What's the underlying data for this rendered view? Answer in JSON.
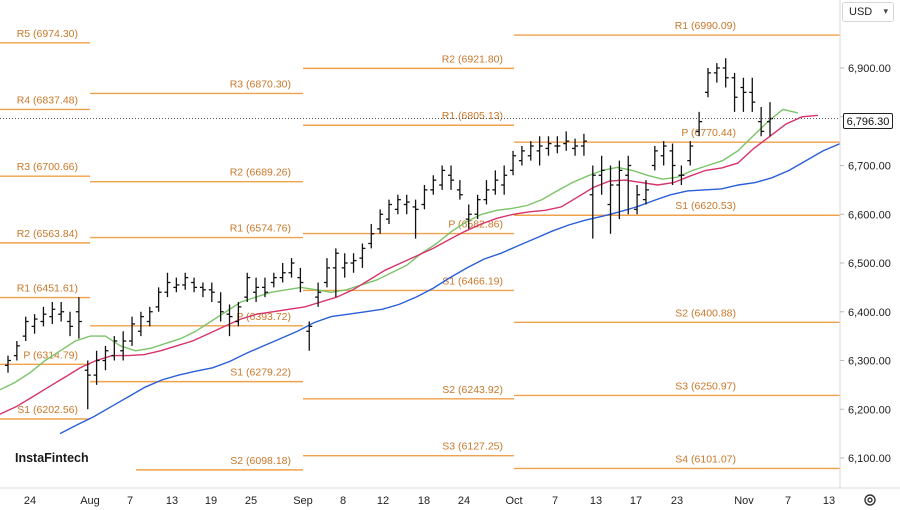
{
  "currency": {
    "label": "USD",
    "chevron_icon": "chevron-down-icon"
  },
  "last_price": "6,796.30",
  "watermark": {
    "text": "InstaFintech"
  },
  "settings_icon": "gear-icon",
  "colors": {
    "pivot": "#f0a14b",
    "ma_green": "#7cc46a",
    "ma_red": "#d6336c",
    "ma_blue": "#2a5fd8",
    "candle": "#111111"
  },
  "chart_data": {
    "type": "ohlc",
    "y_axis": {
      "ticks": [
        "6,100.00",
        "6,200.00",
        "6,300.00",
        "6,400.00",
        "6,500.00",
        "6,600.00",
        "6,700.00",
        "6,800.00",
        "6,900.00"
      ],
      "tick_values": [
        6100,
        6200,
        6300,
        6400,
        6500,
        6600,
        6700,
        6800,
        6900
      ],
      "range": [
        6070,
        7150
      ]
    },
    "x_axis": {
      "ticks": [
        "24",
        "Aug",
        "7",
        "13",
        "19",
        "25",
        "Sep",
        "8",
        "12",
        "18",
        "24",
        "Oct",
        "7",
        "13",
        "17",
        "23",
        "Nov",
        "7",
        "13"
      ]
    },
    "pivot_levels": [
      {
        "label": "R1 (6990.09)",
        "value": 6990.09
      },
      {
        "label": "R2 (6921.80)",
        "value": 6921.8
      },
      {
        "label": "R1 (6805.13)",
        "value": 6805.13
      },
      {
        "label": "P (6770.44)",
        "value": 6770.44
      },
      {
        "label": "S1 (6620.53)",
        "value": 6620.53
      },
      {
        "label": "S2 (6400.88)",
        "value": 6400.88
      },
      {
        "label": "S3 (6250.97)",
        "value": 6250.97
      },
      {
        "label": "S4 (6101.07)",
        "value": 6101.07
      },
      {
        "label": "R3 (6870.30)",
        "value": 6870.3
      },
      {
        "label": "R2 (6689.26)",
        "value": 6689.26
      },
      {
        "label": "R1 (6574.76)",
        "value": 6574.76
      },
      {
        "label": "P (6582.86)",
        "value": 6582.86
      },
      {
        "label": "S1 (6466.19)",
        "value": 6466.19
      },
      {
        "label": "P (6393.72)",
        "value": 6393.72
      },
      {
        "label": "S1 (6279.22)",
        "value": 6279.22
      },
      {
        "label": "S2 (6243.92)",
        "value": 6243.92
      },
      {
        "label": "S3 (6127.25)",
        "value": 6127.25
      },
      {
        "label": "S2 (6098.18)",
        "value": 6098.18
      },
      {
        "label": "R5 (6974.30)",
        "value": 6974.3
      },
      {
        "label": "R4 (6837.48)",
        "value": 6837.48
      },
      {
        "label": "R3 (6700.66)",
        "value": 6700.66
      },
      {
        "label": "R2 (6563.84)",
        "value": 6563.84
      },
      {
        "label": "R1 (6451.61)",
        "value": 6451.61
      },
      {
        "label": "P (6314.79)",
        "value": 6314.79
      },
      {
        "label": "S1 (6202.56)",
        "value": 6202.56
      }
    ],
    "bars": [
      {
        "o": 6290,
        "h": 6310,
        "l": 6275,
        "c": 6300
      },
      {
        "o": 6310,
        "h": 6340,
        "l": 6300,
        "c": 6330
      },
      {
        "o": 6350,
        "h": 6390,
        "l": 6340,
        "c": 6380
      },
      {
        "o": 6370,
        "h": 6395,
        "l": 6355,
        "c": 6385
      },
      {
        "o": 6380,
        "h": 6410,
        "l": 6370,
        "c": 6395
      },
      {
        "o": 6390,
        "h": 6420,
        "l": 6375,
        "c": 6405
      },
      {
        "o": 6395,
        "h": 6420,
        "l": 6380,
        "c": 6400
      },
      {
        "o": 6380,
        "h": 6400,
        "l": 6350,
        "c": 6370
      },
      {
        "o": 6400,
        "h": 6430,
        "l": 6345,
        "c": 6380
      },
      {
        "o": 6280,
        "h": 6300,
        "l": 6200,
        "c": 6270
      },
      {
        "o": 6270,
        "h": 6320,
        "l": 6250,
        "c": 6300
      },
      {
        "o": 6300,
        "h": 6330,
        "l": 6280,
        "c": 6320
      },
      {
        "o": 6310,
        "h": 6350,
        "l": 6300,
        "c": 6340
      },
      {
        "o": 6320,
        "h": 6360,
        "l": 6300,
        "c": 6340
      },
      {
        "o": 6340,
        "h": 6390,
        "l": 6330,
        "c": 6375
      },
      {
        "o": 6360,
        "h": 6400,
        "l": 6350,
        "c": 6390
      },
      {
        "o": 6380,
        "h": 6410,
        "l": 6370,
        "c": 6400
      },
      {
        "o": 6410,
        "h": 6450,
        "l": 6400,
        "c": 6440
      },
      {
        "o": 6440,
        "h": 6480,
        "l": 6430,
        "c": 6460
      },
      {
        "o": 6450,
        "h": 6470,
        "l": 6440,
        "c": 6455
      },
      {
        "o": 6455,
        "h": 6480,
        "l": 6445,
        "c": 6470
      },
      {
        "o": 6460,
        "h": 6470,
        "l": 6440,
        "c": 6450
      },
      {
        "o": 6450,
        "h": 6460,
        "l": 6430,
        "c": 6445
      },
      {
        "o": 6445,
        "h": 6460,
        "l": 6420,
        "c": 6440
      },
      {
        "o": 6420,
        "h": 6440,
        "l": 6380,
        "c": 6400
      },
      {
        "o": 6395,
        "h": 6415,
        "l": 6350,
        "c": 6390
      },
      {
        "o": 6380,
        "h": 6420,
        "l": 6370,
        "c": 6410
      },
      {
        "o": 6430,
        "h": 6480,
        "l": 6420,
        "c": 6470
      },
      {
        "o": 6440,
        "h": 6470,
        "l": 6420,
        "c": 6450
      },
      {
        "o": 6450,
        "h": 6470,
        "l": 6430,
        "c": 6440
      },
      {
        "o": 6460,
        "h": 6480,
        "l": 6450,
        "c": 6470
      },
      {
        "o": 6470,
        "h": 6500,
        "l": 6460,
        "c": 6480
      },
      {
        "o": 6480,
        "h": 6510,
        "l": 6470,
        "c": 6500
      },
      {
        "o": 6470,
        "h": 6490,
        "l": 6440,
        "c": 6460
      },
      {
        "o": 6360,
        "h": 6380,
        "l": 6320,
        "c": 6370
      },
      {
        "o": 6430,
        "h": 6460,
        "l": 6410,
        "c": 6440
      },
      {
        "o": 6460,
        "h": 6510,
        "l": 6450,
        "c": 6490
      },
      {
        "o": 6490,
        "h": 6530,
        "l": 6430,
        "c": 6520
      },
      {
        "o": 6490,
        "h": 6520,
        "l": 6470,
        "c": 6500
      },
      {
        "o": 6500,
        "h": 6520,
        "l": 6480,
        "c": 6505
      },
      {
        "o": 6510,
        "h": 6540,
        "l": 6490,
        "c": 6530
      },
      {
        "o": 6540,
        "h": 6580,
        "l": 6530,
        "c": 6560
      },
      {
        "o": 6570,
        "h": 6610,
        "l": 6560,
        "c": 6600
      },
      {
        "o": 6590,
        "h": 6630,
        "l": 6580,
        "c": 6620
      },
      {
        "o": 6610,
        "h": 6640,
        "l": 6600,
        "c": 6630
      },
      {
        "o": 6620,
        "h": 6640,
        "l": 6600,
        "c": 6625
      },
      {
        "o": 6615,
        "h": 6630,
        "l": 6550,
        "c": 6610
      },
      {
        "o": 6620,
        "h": 6660,
        "l": 6610,
        "c": 6650
      },
      {
        "o": 6650,
        "h": 6680,
        "l": 6640,
        "c": 6670
      },
      {
        "o": 6660,
        "h": 6700,
        "l": 6650,
        "c": 6690
      },
      {
        "o": 6680,
        "h": 6700,
        "l": 6650,
        "c": 6670
      },
      {
        "o": 6650,
        "h": 6670,
        "l": 6630,
        "c": 6640
      },
      {
        "o": 6590,
        "h": 6620,
        "l": 6570,
        "c": 6600
      },
      {
        "o": 6600,
        "h": 6640,
        "l": 6590,
        "c": 6630
      },
      {
        "o": 6630,
        "h": 6670,
        "l": 6620,
        "c": 6650
      },
      {
        "o": 6650,
        "h": 6690,
        "l": 6640,
        "c": 6670
      },
      {
        "o": 6660,
        "h": 6700,
        "l": 6640,
        "c": 6680
      },
      {
        "o": 6690,
        "h": 6730,
        "l": 6680,
        "c": 6720
      },
      {
        "o": 6710,
        "h": 6740,
        "l": 6700,
        "c": 6730
      },
      {
        "o": 6720,
        "h": 6750,
        "l": 6710,
        "c": 6740
      },
      {
        "o": 6730,
        "h": 6760,
        "l": 6700,
        "c": 6740
      },
      {
        "o": 6735,
        "h": 6760,
        "l": 6720,
        "c": 6745
      },
      {
        "o": 6740,
        "h": 6760,
        "l": 6725,
        "c": 6740
      },
      {
        "o": 6745,
        "h": 6770,
        "l": 6730,
        "c": 6750
      },
      {
        "o": 6735,
        "h": 6755,
        "l": 6720,
        "c": 6740
      },
      {
        "o": 6740,
        "h": 6765,
        "l": 6720,
        "c": 6750
      },
      {
        "o": 6640,
        "h": 6700,
        "l": 6550,
        "c": 6680
      },
      {
        "o": 6680,
        "h": 6720,
        "l": 6640,
        "c": 6690
      },
      {
        "o": 6620,
        "h": 6700,
        "l": 6560,
        "c": 6660
      },
      {
        "o": 6660,
        "h": 6710,
        "l": 6590,
        "c": 6690
      },
      {
        "o": 6680,
        "h": 6720,
        "l": 6600,
        "c": 6700
      },
      {
        "o": 6610,
        "h": 6660,
        "l": 6600,
        "c": 6640
      },
      {
        "o": 6630,
        "h": 6670,
        "l": 6620,
        "c": 6650
      },
      {
        "o": 6700,
        "h": 6740,
        "l": 6690,
        "c": 6730
      },
      {
        "o": 6720,
        "h": 6750,
        "l": 6700,
        "c": 6740
      },
      {
        "o": 6730,
        "h": 6745,
        "l": 6660,
        "c": 6700
      },
      {
        "o": 6680,
        "h": 6700,
        "l": 6660,
        "c": 6680
      },
      {
        "o": 6710,
        "h": 6750,
        "l": 6700,
        "c": 6740
      },
      {
        "o": 6770,
        "h": 6810,
        "l": 6760,
        "c": 6790
      },
      {
        "o": 6850,
        "h": 6900,
        "l": 6840,
        "c": 6890
      },
      {
        "o": 6890,
        "h": 6910,
        "l": 6870,
        "c": 6900
      },
      {
        "o": 6900,
        "h": 6920,
        "l": 6860,
        "c": 6880
      },
      {
        "o": 6880,
        "h": 6890,
        "l": 6810,
        "c": 6840
      },
      {
        "o": 6860,
        "h": 6880,
        "l": 6810,
        "c": 6850
      },
      {
        "o": 6850,
        "h": 6880,
        "l": 6810,
        "c": 6830
      },
      {
        "o": 6790,
        "h": 6820,
        "l": 6760,
        "c": 6770
      },
      {
        "o": 6790,
        "h": 6830,
        "l": 6760,
        "c": 6796.3
      }
    ],
    "ma_green": [
      6240,
      6255,
      6275,
      6300,
      6320,
      6340,
      6350,
      6350,
      6330,
      6320,
      6325,
      6335,
      6345,
      6360,
      6380,
      6400,
      6420,
      6430,
      6440,
      6445,
      6450,
      6445,
      6440,
      6445,
      6455,
      6465,
      6480,
      6495,
      6520,
      6540,
      6565,
      6585,
      6600,
      6608,
      6612,
      6618,
      6630,
      6648,
      6665,
      6678,
      6690,
      6696,
      6690,
      6680,
      6672,
      6676,
      6690,
      6700,
      6710,
      6730,
      6760,
      6790,
      6815,
      6808
    ],
    "ma_red": [
      6190,
      6205,
      6225,
      6245,
      6265,
      6285,
      6300,
      6310,
      6310,
      6312,
      6320,
      6330,
      6340,
      6355,
      6370,
      6385,
      6395,
      6400,
      6405,
      6410,
      6420,
      6430,
      6445,
      6465,
      6485,
      6500,
      6515,
      6530,
      6548,
      6565,
      6580,
      6592,
      6600,
      6605,
      6608,
      6615,
      6635,
      6655,
      6668,
      6670,
      6665,
      6660,
      6665,
      6678,
      6690,
      6695,
      6705,
      6735,
      6760,
      6785,
      6800,
      6803
    ],
    "ma_blue": [
      6150,
      6168,
      6185,
      6205,
      6225,
      6245,
      6260,
      6270,
      6278,
      6285,
      6298,
      6315,
      6330,
      6345,
      6360,
      6378,
      6390,
      6395,
      6400,
      6405,
      6415,
      6430,
      6448,
      6470,
      6490,
      6508,
      6520,
      6535,
      6550,
      6565,
      6578,
      6588,
      6596,
      6605,
      6615,
      6628,
      6640,
      6648,
      6650,
      6652,
      6660,
      6665,
      6675,
      6690,
      6710,
      6730,
      6745
    ]
  }
}
